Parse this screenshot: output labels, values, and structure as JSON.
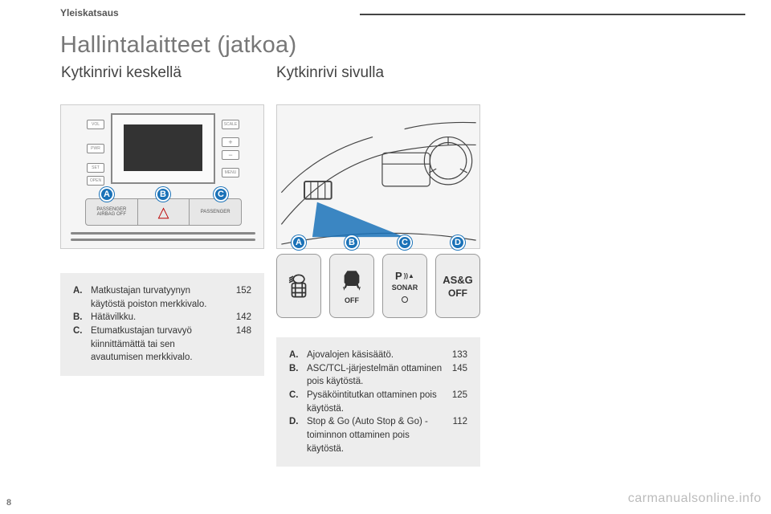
{
  "chapter": "Yleiskatsaus",
  "title": "Hallintalaitteet (jatkoa)",
  "subtitle_left": "Kytkinrivi keskellä",
  "subtitle_right": "Kytkinrivi sivulla",
  "badges": {
    "A": "A",
    "B": "B",
    "C": "C",
    "D": "D"
  },
  "fig1": {
    "side_labels": {
      "vol": "VOL",
      "scale": "SCALE",
      "pwr": "PWR",
      "menu": "MENU",
      "set": "SET",
      "open": "OPEN"
    },
    "panel": {
      "left": "PASSENGER\nAIRBAG OFF",
      "right": "PASSENGER"
    }
  },
  "keys": {
    "c": {
      "top": "P ))",
      "sub": "SONAR"
    },
    "d": {
      "top": "AS&G",
      "sub": "OFF"
    },
    "b": {
      "sub": "OFF"
    }
  },
  "box1": {
    "entries": [
      {
        "lbl": "A.",
        "txt": "Matkustajan turvatyynyn käytöstä poiston merkkivalo.",
        "pg": "152"
      },
      {
        "lbl": "B.",
        "txt": "Hätävilkku.",
        "pg": "142"
      },
      {
        "lbl": "C.",
        "txt": "Etumatkustajan turvavyö kiinnittämättä tai sen avautumisen merkkivalo.",
        "pg": "148"
      }
    ]
  },
  "box2": {
    "entries": [
      {
        "lbl": "A.",
        "txt": "Ajovalojen käsisäätö.",
        "pg": "133"
      },
      {
        "lbl": "B.",
        "txt": "ASC/TCL-järjestelmän ottaminen pois käytöstä.",
        "pg": "145"
      },
      {
        "lbl": "C.",
        "txt": "Pysäköintitutkan ottaminen pois käytöstä.",
        "pg": "125"
      },
      {
        "lbl": "D.",
        "txt": "Stop & Go (Auto Stop & Go) -toiminnon ottaminen pois käytöstä.",
        "pg": "112"
      }
    ]
  },
  "watermark": "carmanualsonline.info",
  "pagenum": "8"
}
